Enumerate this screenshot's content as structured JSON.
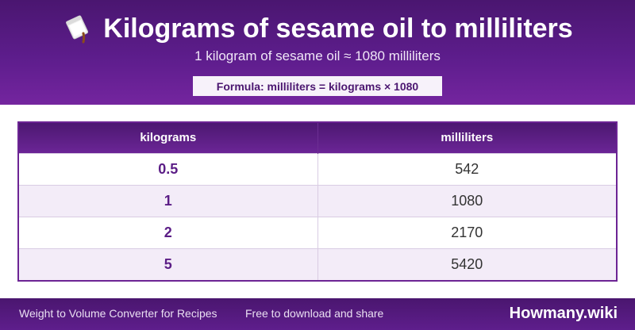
{
  "header": {
    "icon": "pouring-oil-icon",
    "title": "Kilograms of sesame oil to milliliters",
    "subtitle": "1 kilogram of sesame oil ≈ 1080 milliliters",
    "formula": "Formula: milliliters = kilograms × 1080"
  },
  "table": {
    "columns": [
      "kilograms",
      "milliliters"
    ],
    "rows": [
      {
        "kilograms": "0.5",
        "milliliters": "542"
      },
      {
        "kilograms": "1",
        "milliliters": "1080"
      },
      {
        "kilograms": "2",
        "milliliters": "2170"
      },
      {
        "kilograms": "5",
        "milliliters": "5420"
      }
    ]
  },
  "footer": {
    "left": "Weight to Volume Converter for Recipes",
    "middle": "Free to download and share",
    "brand": "Howmany.wiki"
  },
  "colors": {
    "primary": "#5d1d8c",
    "row_alt": "#f3ecf8",
    "formula_bg": "#f7f2fa"
  }
}
